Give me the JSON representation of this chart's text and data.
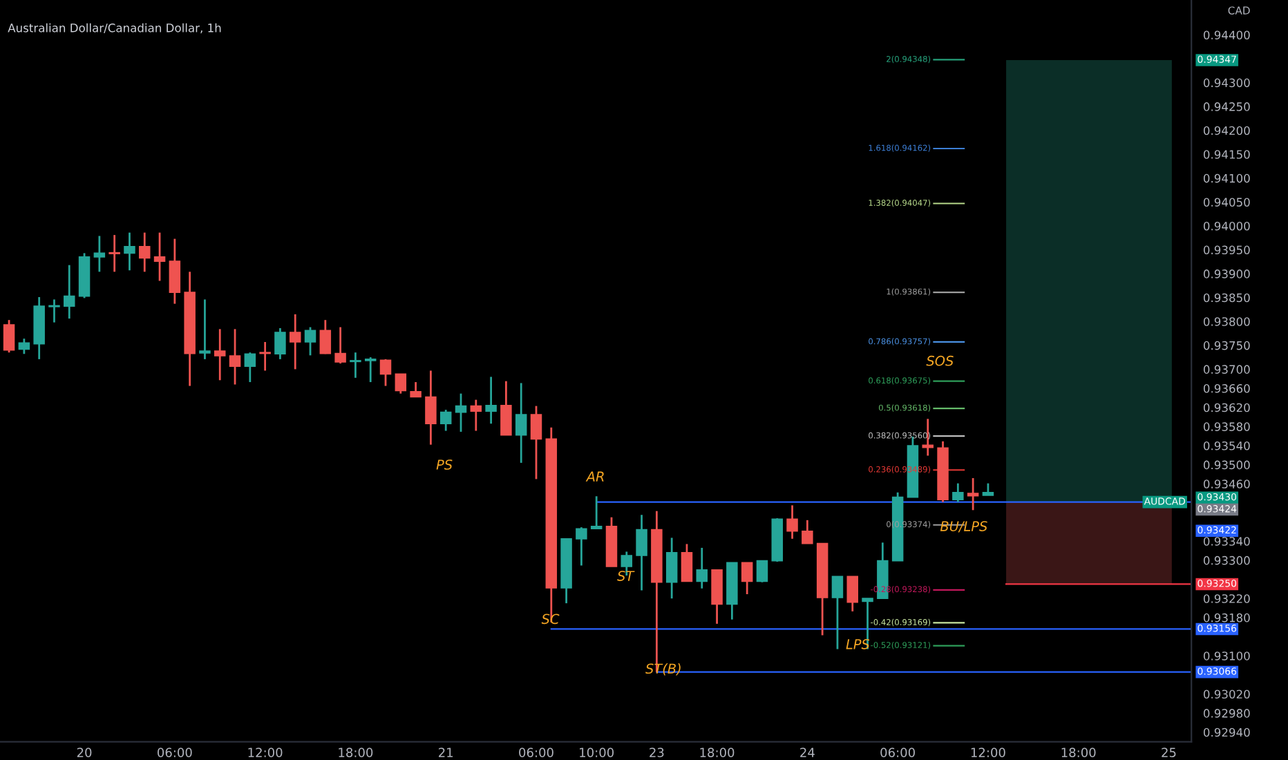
{
  "chart_data": {
    "type": "candlestick",
    "title": "Australian Dollar/Canadian Dollar, 1h",
    "categories": [
      null,
      null,
      null,
      null,
      null,
      "20",
      null,
      null,
      null,
      null,
      null,
      "06:00",
      null,
      null,
      null,
      null,
      null,
      "12:00",
      null,
      null,
      null,
      null,
      null,
      "18:00",
      null,
      null,
      null,
      null,
      null,
      "21",
      null,
      null,
      null,
      null,
      null,
      "06:00",
      null,
      null,
      null,
      "10:00",
      null,
      null,
      null,
      "23",
      null,
      null,
      null,
      "18:00",
      null,
      null,
      null,
      null,
      null,
      "24",
      null,
      null,
      null,
      null,
      null,
      "06:00",
      null,
      null,
      null,
      null,
      null,
      "12:00",
      null,
      null,
      null,
      null,
      null,
      "18:00",
      null,
      null,
      null,
      null,
      null,
      "25",
      null
    ],
    "ohlc": [
      [
        0.93793,
        0.93803,
        0.93735,
        0.9374
      ],
      [
        0.93742,
        0.93764,
        0.93732,
        0.93755
      ],
      [
        0.93753,
        0.93851,
        0.93721,
        0.93832
      ],
      [
        0.93831,
        0.93846,
        0.93798,
        0.93833
      ],
      [
        0.93832,
        0.93918,
        0.93806,
        0.93853
      ],
      [
        0.93853,
        0.93943,
        0.93849,
        0.93935
      ],
      [
        0.93935,
        0.93979,
        0.93904,
        0.93943
      ],
      [
        0.93944,
        0.93981,
        0.93904,
        0.93942
      ],
      [
        0.93943,
        0.93986,
        0.93907,
        0.93957
      ],
      [
        0.93957,
        0.93986,
        0.93904,
        0.93933
      ],
      [
        0.93935,
        0.93986,
        0.93885,
        0.93926
      ],
      [
        0.93926,
        0.93973,
        0.93837,
        0.93861
      ],
      [
        0.93861,
        0.93904,
        0.93665,
        0.93733
      ],
      [
        0.93734,
        0.93846,
        0.93721,
        0.93738
      ],
      [
        0.93738,
        0.93784,
        0.93677,
        0.93728
      ],
      [
        0.93728,
        0.93784,
        0.93668,
        0.93706
      ],
      [
        0.93706,
        0.93735,
        0.93673,
        0.93732
      ],
      [
        0.93735,
        0.93757,
        0.93697,
        0.93733
      ],
      [
        0.93732,
        0.93786,
        0.93721,
        0.93777
      ],
      [
        0.93777,
        0.93815,
        0.937,
        0.93757
      ],
      [
        0.93757,
        0.93788,
        0.93729,
        0.93781
      ],
      [
        0.93781,
        0.93803,
        0.93732,
        0.93733
      ],
      [
        0.93733,
        0.93788,
        0.93712,
        0.93715
      ],
      [
        0.93716,
        0.93735,
        0.93682,
        0.93718
      ],
      [
        0.93718,
        0.93725,
        0.93673,
        0.93721
      ],
      [
        0.93719,
        0.93721,
        0.93665,
        0.9369
      ],
      [
        0.9369,
        0.9369,
        0.93649,
        0.93655
      ],
      [
        0.93653,
        0.93673,
        0.93642,
        0.93642
      ],
      [
        0.93642,
        0.93697,
        0.93542,
        0.93586
      ],
      [
        0.93586,
        0.93615,
        0.93571,
        0.9361
      ],
      [
        0.9361,
        0.93649,
        0.93569,
        0.93623
      ],
      [
        0.93623,
        0.93636,
        0.93571,
        0.93612
      ],
      [
        0.93612,
        0.93684,
        0.93586,
        0.93624
      ],
      [
        0.93624,
        0.93675,
        0.93562,
        0.93562
      ],
      [
        0.93562,
        0.93671,
        0.93504,
        0.93605
      ],
      [
        0.93605,
        0.93623,
        0.9347,
        0.93554
      ],
      [
        0.93554,
        0.93578,
        0.9317,
        0.93242
      ],
      [
        0.93242,
        0.93345,
        0.9321,
        0.93345
      ],
      [
        0.93345,
        0.93369,
        0.93289,
        0.93366
      ],
      [
        0.93366,
        0.93434,
        0.93366,
        0.93371
      ],
      [
        0.93371,
        0.9339,
        0.93287,
        0.93287
      ],
      [
        0.93287,
        0.93318,
        0.93268,
        0.9331
      ],
      [
        0.9331,
        0.93395,
        0.93237,
        0.93364
      ],
      [
        0.93364,
        0.93403,
        0.93066,
        0.93254
      ],
      [
        0.93254,
        0.93347,
        0.9322,
        0.93316
      ],
      [
        0.93316,
        0.93334,
        0.93256,
        0.93256
      ],
      [
        0.93256,
        0.93326,
        0.93241,
        0.9328
      ],
      [
        0.9328,
        0.9328,
        0.93167,
        0.93208
      ],
      [
        0.93208,
        0.93295,
        0.93176,
        0.93295
      ],
      [
        0.93295,
        0.93295,
        0.93229,
        0.93256
      ],
      [
        0.93256,
        0.93299,
        0.93254,
        0.93299
      ],
      [
        0.93299,
        0.93388,
        0.93297,
        0.93386
      ],
      [
        0.93386,
        0.93415,
        0.93345,
        0.93361
      ],
      [
        0.93361,
        0.93384,
        0.93335,
        0.93335
      ],
      [
        0.93335,
        0.93335,
        0.93143,
        0.93222
      ],
      [
        0.93222,
        0.93266,
        0.93114,
        0.93266
      ],
      [
        0.93266,
        0.93266,
        0.93193,
        0.93212
      ],
      [
        0.93214,
        0.9322,
        0.93114,
        0.9322
      ],
      [
        0.9322,
        0.93337,
        0.9322,
        0.93299
      ],
      [
        0.93299,
        0.93442,
        0.93299,
        0.93432
      ],
      [
        0.93432,
        0.93559,
        0.93432,
        0.9354
      ],
      [
        0.93541,
        0.93596,
        0.93519,
        0.93536
      ],
      [
        0.93535,
        0.93549,
        0.93422,
        0.93427
      ],
      [
        0.93427,
        0.93461,
        0.93422,
        0.93442
      ],
      [
        0.9344,
        0.93472,
        0.93405,
        0.93435
      ],
      [
        0.93436,
        0.93461,
        0.93436,
        0.93442
      ],
      null,
      null,
      null,
      null,
      null,
      null,
      null,
      null,
      null,
      null,
      null,
      null,
      null
    ],
    "colors": [
      "#ef5350",
      "#26a69a",
      "#26a69a",
      "#26a69a",
      "#26a69a",
      "#26a69a",
      "#26a69a",
      "#ef5350",
      "#26a69a",
      "#ef5350",
      "#ef5350",
      "#ef5350",
      "#ef5350",
      "#26a69a",
      "#ef5350",
      "#ef5350",
      "#26a69a",
      "#ef5350",
      "#26a69a",
      "#ef5350",
      "#26a69a",
      "#ef5350",
      "#ef5350",
      "#26a69a",
      "#26a69a",
      "#ef5350",
      "#ef5350",
      "#ef5350",
      "#ef5350",
      "#26a69a",
      "#26a69a",
      "#ef5350",
      "#26a69a",
      "#ef5350",
      "#26a69a",
      "#ef5350",
      "#ef5350",
      "#26a69a",
      "#26a69a",
      "#26a69a",
      "#ef5350",
      "#26a69a",
      "#26a69a",
      "#ef5350",
      "#26a69a",
      "#ef5350",
      "#26a69a",
      "#ef5350",
      "#26a69a",
      "#ef5350",
      "#26a69a",
      "#26a69a",
      "#ef5350",
      "#ef5350",
      "#ef5350",
      "#26a69a",
      "#ef5350",
      "#26a69a",
      "#26a69a",
      "#26a69a",
      "#26a69a",
      "#ef5350",
      "#ef5350",
      "#26a69a",
      "#ef5350",
      "#26a69a",
      null,
      null,
      null,
      null,
      null,
      null,
      null,
      null,
      null,
      null,
      null,
      null,
      null
    ],
    "ylim": [
      0.9292,
      0.94473
    ],
    "yticks": [
      {
        "value": 0.944,
        "label": "0.94400"
      },
      {
        "value": 0.943,
        "label": "0.94300"
      },
      {
        "value": 0.9425,
        "label": "0.94250"
      },
      {
        "value": 0.942,
        "label": "0.94200"
      },
      {
        "value": 0.9415,
        "label": "0.94150"
      },
      {
        "value": 0.941,
        "label": "0.94100"
      },
      {
        "value": 0.9405,
        "label": "0.94050"
      },
      {
        "value": 0.94,
        "label": "0.94000"
      },
      {
        "value": 0.9395,
        "label": "0.93950"
      },
      {
        "value": 0.939,
        "label": "0.93900"
      },
      {
        "value": 0.9385,
        "label": "0.93850"
      },
      {
        "value": 0.938,
        "label": "0.93800"
      },
      {
        "value": 0.9375,
        "label": "0.93750"
      },
      {
        "value": 0.937,
        "label": "0.93700"
      },
      {
        "value": 0.9366,
        "label": "0.93660"
      },
      {
        "value": 0.9362,
        "label": "0.93620"
      },
      {
        "value": 0.9358,
        "label": "0.93580"
      },
      {
        "value": 0.9354,
        "label": "0.93540"
      },
      {
        "value": 0.935,
        "label": "0.93500"
      },
      {
        "value": 0.9346,
        "label": "0.93460"
      },
      {
        "value": 0.9334,
        "label": "0.93340"
      },
      {
        "value": 0.933,
        "label": "0.93300"
      },
      {
        "value": 0.9322,
        "label": "0.93220"
      },
      {
        "value": 0.9318,
        "label": "0.93180"
      },
      {
        "value": 0.931,
        "label": "0.93100"
      },
      {
        "value": 0.9302,
        "label": "0.93020"
      },
      {
        "value": 0.9298,
        "label": "0.92980"
      },
      {
        "value": 0.9294,
        "label": "0.92940"
      }
    ],
    "grid": false,
    "ref_lines": [
      {
        "axis": "y",
        "value": 0.94348,
        "label": "2(0.94348)",
        "color": "#26a17b"
      },
      {
        "axis": "y",
        "value": 0.94162,
        "label": "1.618(0.94162)",
        "color": "#3d7fd6"
      },
      {
        "axis": "y",
        "value": 0.94047,
        "label": "1.382(0.94047)",
        "color": "#b7d98b"
      },
      {
        "axis": "y",
        "value": 0.93861,
        "label": "1(0.93861)",
        "color": "#9e9e9e"
      },
      {
        "axis": "y",
        "value": 0.93757,
        "label": "0.786(0.93757)",
        "color": "#4a90e2"
      },
      {
        "axis": "y",
        "value": 0.93675,
        "label": "0.618(0.93675)",
        "color": "#2e9e5a"
      },
      {
        "axis": "y",
        "value": 0.93618,
        "label": "0.5(0.93618)",
        "color": "#66bb6a"
      },
      {
        "axis": "y",
        "value": 0.9356,
        "label": "0.382(0.93560)",
        "color": "#bdbdbd"
      },
      {
        "axis": "y",
        "value": 0.93489,
        "label": "0.236(0.93489)",
        "color": "#e53935"
      },
      {
        "axis": "y",
        "value": 0.93374,
        "label": "0(0.93374)",
        "color": "#9e9e9e"
      },
      {
        "axis": "y",
        "value": 0.93238,
        "label": "-0.28(0.93238)",
        "color": "#c2185b"
      },
      {
        "axis": "y",
        "value": 0.93169,
        "label": "-0.42(0.93169)",
        "color": "#c8e6a0"
      },
      {
        "axis": "y",
        "value": 0.93121,
        "label": "-0.52(0.93121)",
        "color": "#2e9e5a"
      },
      {
        "axis": "y",
        "value": 0.93422,
        "label": "0.93422",
        "color": "#2962ff"
      },
      {
        "axis": "y",
        "value": 0.9325,
        "label": "0.93250",
        "color": "#f23645"
      },
      {
        "axis": "y",
        "value": 0.93156,
        "label": "0.93156",
        "color": "#2962ff"
      },
      {
        "axis": "y",
        "value": 0.93066,
        "label": "0.93066",
        "color": "#2962ff"
      }
    ],
    "bands": [
      {
        "axis": "y",
        "from": 0.93422,
        "to": 0.94347,
        "color": "#0b2e27"
      },
      {
        "axis": "y",
        "from": 0.9325,
        "to": 0.93422,
        "color": "#3a1616"
      }
    ],
    "annotations": [
      "PS",
      "AR",
      "SC",
      "ST",
      "ST(B)",
      "LPS",
      "SOS",
      "BU/LPS",
      "CAD",
      {
        "text": "AUDCAD",
        "y": 0.9343
      },
      "0.94347",
      "0.93430",
      "0.93424"
    ]
  }
}
